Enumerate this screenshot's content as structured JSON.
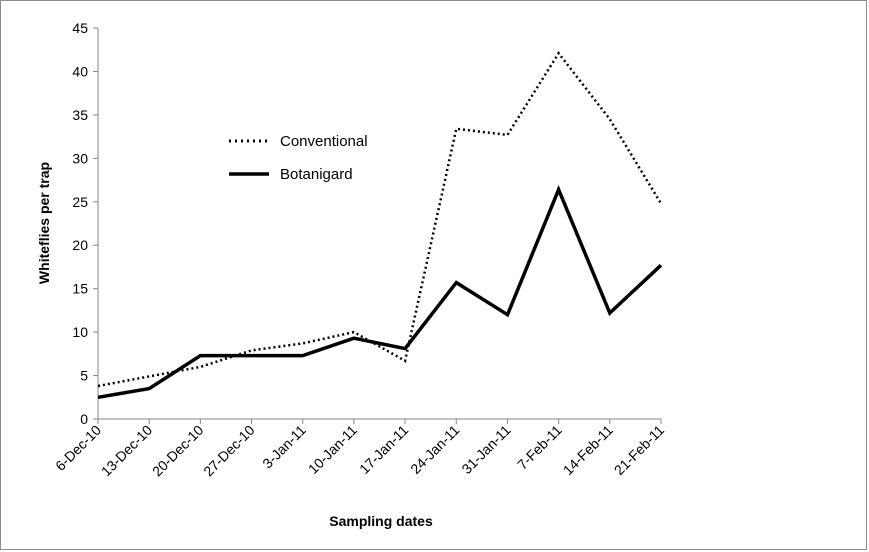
{
  "chart_data": {
    "type": "line",
    "title": "",
    "xlabel": "Sampling dates",
    "ylabel": "Whiteflies per trap",
    "ylim": [
      0,
      45
    ],
    "yticks": [
      0,
      5,
      10,
      15,
      20,
      25,
      30,
      35,
      40,
      45
    ],
    "grid": false,
    "legend_position": "upper-left inside plot",
    "categories": [
      "6-Dec-10",
      "13-Dec-10",
      "20-Dec-10",
      "27-Dec-10",
      "3-Jan-11",
      "10-Jan-11",
      "17-Jan-11",
      "24-Jan-11",
      "31-Jan-11",
      "7-Feb-11",
      "14-Feb-11",
      "21-Feb-11"
    ],
    "series": [
      {
        "name": "Conventional",
        "style": "dotted",
        "color": "#000000",
        "values": [
          3.8,
          4.9,
          6.0,
          7.9,
          8.7,
          10.0,
          6.7,
          33.4,
          32.7,
          42.1,
          34.5,
          24.8
        ]
      },
      {
        "name": "Botanigard",
        "style": "solid",
        "color": "#000000",
        "values": [
          2.5,
          3.5,
          7.3,
          7.3,
          7.3,
          9.3,
          8.1,
          15.7,
          12.0,
          26.4,
          12.2,
          17.7
        ]
      }
    ]
  }
}
